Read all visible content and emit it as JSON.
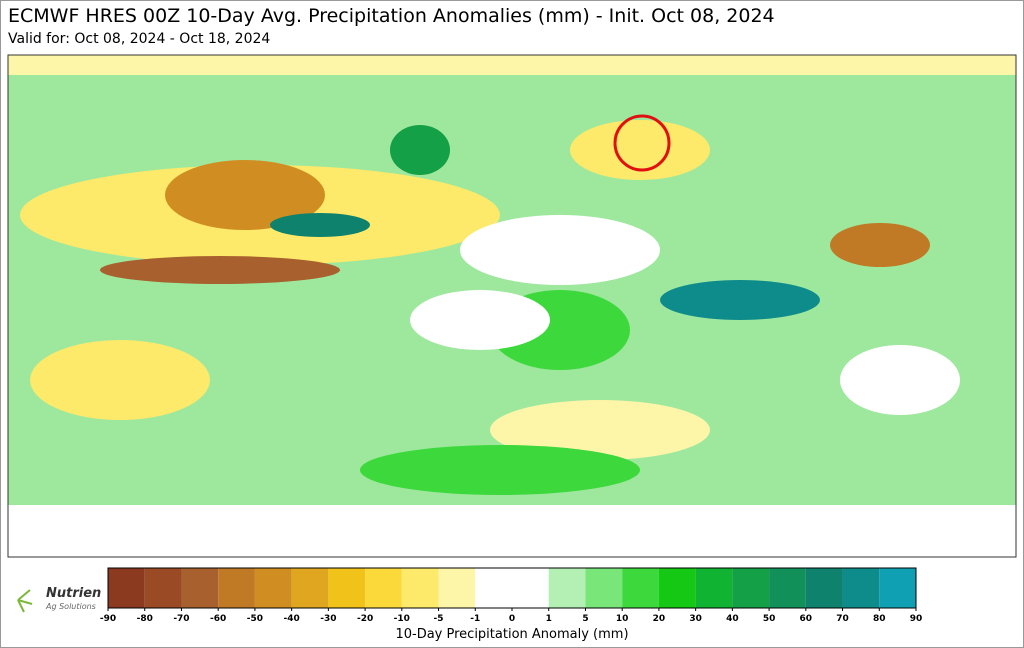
{
  "header": {
    "title": "ECMWF HRES 00Z 10-Day Avg. Precipitation Anomalies (mm) - Init. Oct 08, 2024",
    "subtitle": "Valid for: Oct 08, 2024 - Oct 18, 2024"
  },
  "logo": {
    "name": "Nutrien",
    "tagline": "Ag Solutions"
  },
  "colorbar": {
    "label": "10-Day Precipitation Anomaly (mm)",
    "ticks": [
      -90,
      -80,
      -70,
      -60,
      -50,
      -40,
      -30,
      -20,
      -10,
      -5,
      -1,
      0,
      1,
      5,
      10,
      20,
      30,
      40,
      50,
      60,
      70,
      80,
      90
    ],
    "colors": [
      "#8b3a1f",
      "#9a4a25",
      "#a8602e",
      "#c07a26",
      "#d08e22",
      "#e0a61f",
      "#f0c21a",
      "#fcd93a",
      "#fde96a",
      "#fdf5a8",
      "#ffffff",
      "#ffffff",
      "#b4f0b4",
      "#78e678",
      "#3cd83c",
      "#14c814",
      "#10b432",
      "#14a046",
      "#12905a",
      "#0f826e",
      "#0e8c8c",
      "#0fa0b4"
    ]
  }
}
